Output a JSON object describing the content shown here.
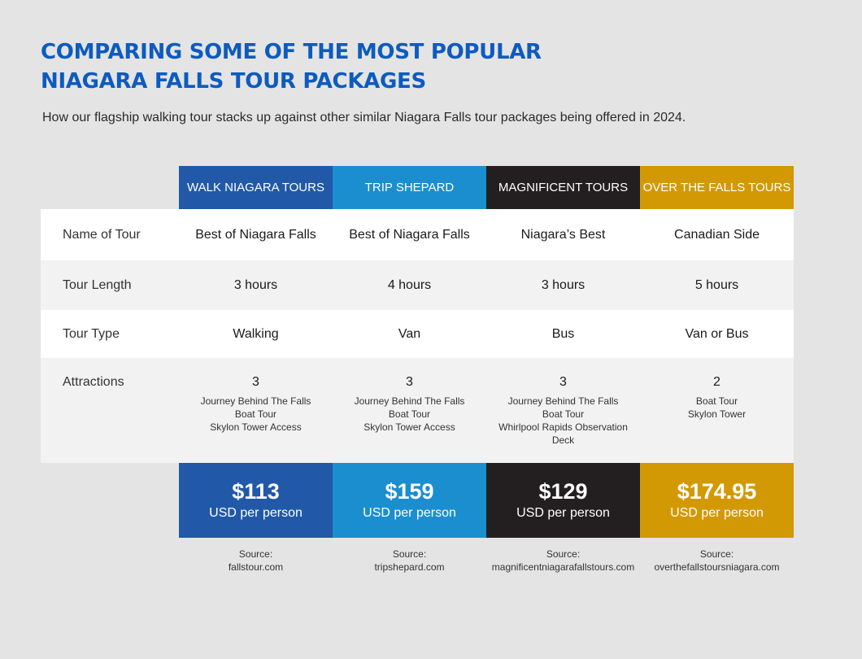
{
  "title_lines": [
    "COMPARING SOME OF THE MOST POPULAR",
    "NIAGARA FALLS TOUR PACKAGES"
  ],
  "subtitle": "How our flagship walking tour stacks up against other similar Niagara Falls tour packages being offered in 2024.",
  "chart_data": {
    "type": "table",
    "columns": [
      {
        "name": "WALK NIAGARA TOURS",
        "color": "#2159a8"
      },
      {
        "name": "TRIP SHEPARD",
        "color": "#1b8ecf"
      },
      {
        "name": "MAGNIFICENT TOURS",
        "color": "#231f20"
      },
      {
        "name": "OVER THE FALLS TOURS",
        "color": "#d39905"
      }
    ],
    "rows": [
      {
        "label": "Name of Tour",
        "values": [
          "Best of Niagara Falls",
          "Best of Niagara Falls",
          "Niagara’s Best",
          "Canadian Side"
        ]
      },
      {
        "label": "Tour Length",
        "values": [
          "3 hours",
          "4 hours",
          "3 hours",
          "5 hours"
        ]
      },
      {
        "label": "Tour Type",
        "values": [
          "Walking",
          "Van",
          "Bus",
          "Van or Bus"
        ]
      },
      {
        "label": "Attractions",
        "values": [
          "3",
          "3",
          "3",
          "2"
        ],
        "details": [
          [
            "Journey Behind The Falls",
            "Boat Tour",
            "Skylon Tower Access"
          ],
          [
            "Journey Behind The Falls",
            "Boat Tour",
            "Skylon Tower Access"
          ],
          [
            "Journey Behind The Falls",
            "Boat Tour",
            "Whirlpool Rapids Observation Deck"
          ],
          [
            "Boat Tour",
            "Skylon Tower"
          ]
        ]
      }
    ],
    "prices": [
      "$113",
      "$159",
      "$129",
      "$174.95"
    ],
    "price_unit": "USD per person",
    "source_label": "Source:",
    "sources": [
      "fallstour.com",
      "tripshepard.com",
      "magnificentniagarafallstours.com",
      "overthefallstoursniagara.com"
    ]
  }
}
